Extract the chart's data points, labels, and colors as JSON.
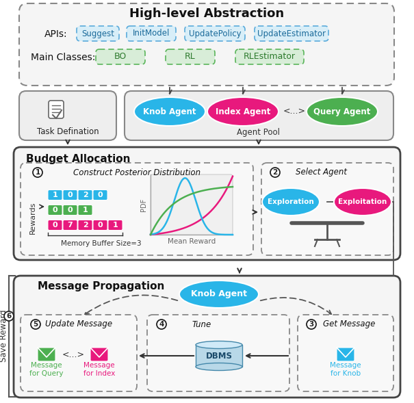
{
  "bg": "#ffffff",
  "knob_color": "#29b5e8",
  "index_color": "#e8197d",
  "query_color": "#4caf50",
  "api_fill": "#d8eef8",
  "api_edge": "#5aabdb",
  "cls_fill": "#d8edd8",
  "cls_edge": "#5ab55a",
  "dbms_fill": "#b8d8e8",
  "dbms_edge": "#4488aa",
  "box_fill": "#f0f0f0",
  "box_edge": "#888888",
  "outer_edge": "#555555",
  "dashed_fill": "#f8f8f8",
  "title": "High-level Abstraction",
  "ba_title": "Budget Allocation",
  "mp_title": "Message Propagation",
  "api_labels": [
    "Suggest",
    "InitModel",
    "UpdatePolicy",
    "UpdateEstimator"
  ],
  "cls_labels": [
    "BO",
    "RL",
    "RLEstimator"
  ],
  "reward_rows": [
    {
      "vals": [
        "1",
        "0",
        "2",
        "0"
      ],
      "color": "#29b5e8"
    },
    {
      "vals": [
        "0",
        "0",
        "1"
      ],
      "color": "#4caf50"
    },
    {
      "vals": [
        "0",
        "7",
        "2",
        "0",
        "1"
      ],
      "color": "#e8197d"
    }
  ]
}
